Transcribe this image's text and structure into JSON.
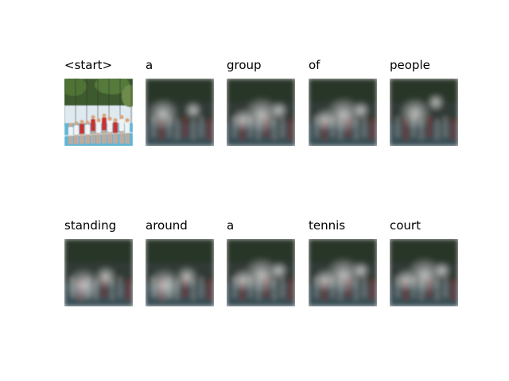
{
  "figure": {
    "frames": [
      {
        "word": "<start>",
        "kind": "original",
        "focus": "full scene"
      },
      {
        "word": "a",
        "kind": "attention",
        "focus": "left figures"
      },
      {
        "word": "group",
        "kind": "attention",
        "focus": "center"
      },
      {
        "word": "of",
        "kind": "attention",
        "focus": "center"
      },
      {
        "word": "people",
        "kind": "attention",
        "focus": "center-left"
      },
      {
        "word": "standing",
        "kind": "attention",
        "focus": "lower-left"
      },
      {
        "word": "around",
        "kind": "attention",
        "focus": "lower-left"
      },
      {
        "word": "a",
        "kind": "attention",
        "focus": "center"
      },
      {
        "word": "tennis",
        "kind": "attention",
        "focus": "center"
      },
      {
        "word": "court",
        "kind": "attention",
        "focus": "center"
      }
    ],
    "colors": {
      "sky": "#dfeaf0",
      "trees": "#3e5a2e",
      "court": "#5fb6d6",
      "red_shirt": "#c8322a",
      "white_shirt": "#f2f2f2",
      "skin": "#d9a57a",
      "dark_overlay": "#202424"
    }
  }
}
